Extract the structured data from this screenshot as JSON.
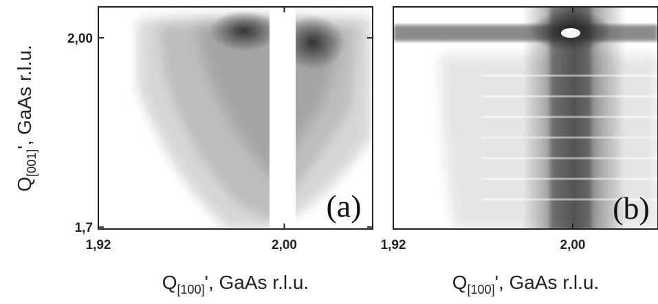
{
  "chart_data": [
    {
      "type": "map",
      "panel_label": "(a)",
      "xlabel": {
        "main": "Q",
        "sub": "[100]",
        "rest": "', GaAs r.l.u."
      },
      "ylabel": {
        "main": "Q",
        "sub": "[001]",
        "rest": "', GaAs r.l.u."
      },
      "xlim": [
        1.92,
        2.038
      ],
      "ylim": [
        1.697,
        2.049
      ],
      "xticks": [
        {
          "value": 1.92,
          "label": "1,92"
        },
        {
          "value": 2.0,
          "label": "2,00"
        }
      ],
      "yticks": [
        {
          "value": 1.7,
          "label": "1,7"
        },
        {
          "value": 2.0,
          "label": "2,00"
        }
      ]
    },
    {
      "type": "map",
      "panel_label": "(b)",
      "xlabel": {
        "main": "Q",
        "sub": "[100]",
        "rest": "', GaAs r.l.u."
      },
      "xlim": [
        1.92,
        2.038
      ],
      "ylim": [
        1.697,
        2.049
      ],
      "xticks": [
        {
          "value": 1.92,
          "label": "1,92"
        },
        {
          "value": 2.0,
          "label": "2,00"
        }
      ]
    }
  ]
}
